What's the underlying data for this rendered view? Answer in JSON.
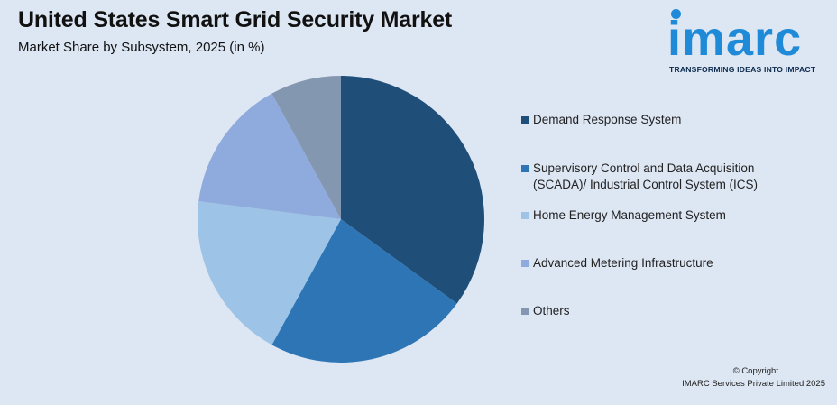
{
  "header": {
    "title": "United States Smart Grid Security Market",
    "subtitle": "Market Share by Subsystem, 2025 (in %)"
  },
  "logo": {
    "word": "imarc",
    "tagline": "TRANSFORMING IDEAS INTO IMPACT",
    "color": "#1f8bd8"
  },
  "chart_data": {
    "type": "pie",
    "title": "United States Smart Grid Security Market",
    "subtitle": "Market Share by Subsystem, 2025 (in %)",
    "legend_position": "right",
    "slices": [
      {
        "label": "Demand Response System",
        "value": 35,
        "color": "#1f4e79"
      },
      {
        "label": "Supervisory Control and Data Acquisition (SCADA)/ Industrial Control System (ICS)",
        "value": 23,
        "color": "#2e75b6"
      },
      {
        "label": "Home Energy Management System",
        "value": 19,
        "color": "#9dc3e6"
      },
      {
        "label": "Advanced Metering Infrastructure",
        "value": 15,
        "color": "#8faadc"
      },
      {
        "label": "Others",
        "value": 8,
        "color": "#8497b0"
      }
    ]
  },
  "legend": {
    "items": [
      {
        "label_line1": "Demand Response System",
        "label_line2": ""
      },
      {
        "label_line1": "Supervisory Control and Data Acquisition",
        "label_line2": "(SCADA)/ Industrial Control System (ICS)"
      },
      {
        "label_line1": "Home Energy Management System",
        "label_line2": ""
      },
      {
        "label_line1": "Advanced Metering Infrastructure",
        "label_line2": ""
      },
      {
        "label_line1": "Others",
        "label_line2": ""
      }
    ]
  },
  "footer": {
    "copyright": "© Copyright",
    "company": "IMARC Services Private Limited 2025"
  }
}
